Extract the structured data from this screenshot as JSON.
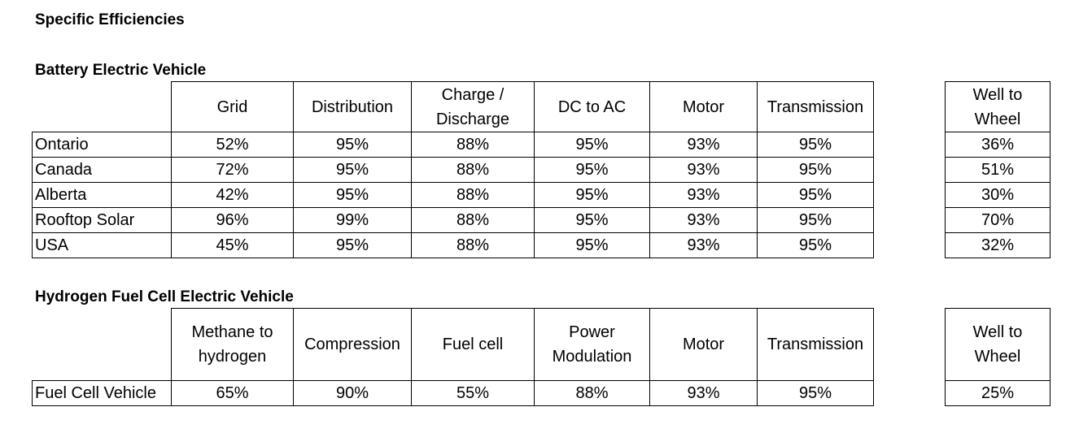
{
  "page_title": "Specific Efficiencies",
  "bev": {
    "title": "Battery Electric Vehicle",
    "headers": [
      [
        "Grid"
      ],
      [
        "Distribution"
      ],
      [
        "Charge /",
        "Discharge"
      ],
      [
        "DC to AC"
      ],
      [
        "Motor"
      ],
      [
        "Transmission"
      ]
    ],
    "wtw_header": [
      "Well to",
      "Wheel"
    ],
    "rows": [
      {
        "label": "Ontario",
        "values": [
          "52%",
          "95%",
          "88%",
          "95%",
          "93%",
          "95%"
        ],
        "wtw": "36%"
      },
      {
        "label": "Canada",
        "values": [
          "72%",
          "95%",
          "88%",
          "95%",
          "93%",
          "95%"
        ],
        "wtw": "51%"
      },
      {
        "label": "Alberta",
        "values": [
          "42%",
          "95%",
          "88%",
          "95%",
          "93%",
          "95%"
        ],
        "wtw": "30%"
      },
      {
        "label": "Rooftop Solar",
        "values": [
          "96%",
          "99%",
          "88%",
          "95%",
          "93%",
          "95%"
        ],
        "wtw": "70%"
      },
      {
        "label": "USA",
        "values": [
          "45%",
          "95%",
          "88%",
          "95%",
          "93%",
          "95%"
        ],
        "wtw": "32%"
      }
    ]
  },
  "fcev": {
    "title": "Hydrogen Fuel Cell Electric Vehicle",
    "headers": [
      [
        "Methane to",
        "hydrogen"
      ],
      [
        "Compression"
      ],
      [
        "Fuel cell"
      ],
      [
        "Power",
        "Modulation"
      ],
      [
        "Motor"
      ],
      [
        "Transmission"
      ]
    ],
    "wtw_header": [
      "Well to",
      "Wheel"
    ],
    "rows": [
      {
        "label": "Fuel Cell Vehicle",
        "values": [
          "65%",
          "90%",
          "55%",
          "88%",
          "93%",
          "95%"
        ],
        "wtw": "25%"
      }
    ]
  }
}
